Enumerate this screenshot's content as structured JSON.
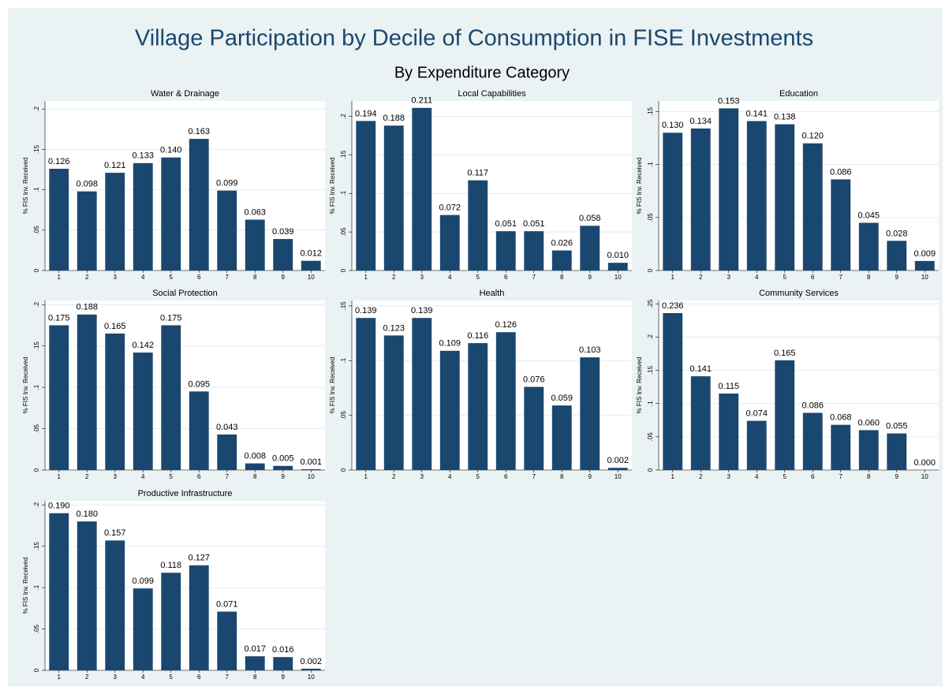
{
  "title": "Village Participation by Decile of Consumption in FISE Investments",
  "subtitle": "By Expenditure Category",
  "chart_data": [
    {
      "type": "bar",
      "title": "Water & Drainage",
      "ylabel": "% FIS Inv. Received",
      "categories": [
        "1",
        "2",
        "3",
        "4",
        "5",
        "6",
        "7",
        "8",
        "9",
        "10"
      ],
      "values": [
        0.126,
        0.098,
        0.121,
        0.133,
        0.14,
        0.163,
        0.099,
        0.063,
        0.039,
        0.012
      ],
      "value_labels": [
        "0.126",
        "0.098",
        "0.121",
        "0.133",
        "0.140",
        "0.163",
        "0.099",
        "0.063",
        "0.039",
        "0.012"
      ],
      "color": "#1a476f",
      "ylim": [
        0,
        0.21
      ],
      "yticks": [
        0,
        {
          "value": 0.05,
          "label": ".05"
        },
        {
          "value": 0.1,
          "label": ".1"
        },
        {
          "value": 0.15,
          "label": ".15"
        },
        {
          "value": 0.2,
          "label": ".2"
        }
      ],
      "grid": true
    },
    {
      "type": "bar",
      "title": "Local Capabilities",
      "ylabel": "% FIS Inv. Received",
      "categories": [
        "1",
        "2",
        "3",
        "4",
        "5",
        "6",
        "7",
        "8",
        "9",
        "10"
      ],
      "values": [
        0.194,
        0.188,
        0.211,
        0.072,
        0.117,
        0.051,
        0.051,
        0.026,
        0.058,
        0.01
      ],
      "value_labels": [
        "0.194",
        "0.188",
        "0.211",
        "0.072",
        "0.117",
        "0.051",
        "0.051",
        "0.026",
        "0.058",
        "0.010"
      ],
      "color": "#1a476f",
      "ylim": [
        0,
        0.22
      ],
      "yticks": [
        0,
        {
          "value": 0.05,
          "label": ".05"
        },
        {
          "value": 0.1,
          "label": ".1"
        },
        {
          "value": 0.15,
          "label": ".15"
        },
        {
          "value": 0.2,
          "label": ".2"
        }
      ],
      "grid": true
    },
    {
      "type": "bar",
      "title": "Education",
      "ylabel": "% FIS Inv. Received",
      "categories": [
        "1",
        "2",
        "3",
        "4",
        "5",
        "6",
        "7",
        "8",
        "9",
        "10"
      ],
      "values": [
        0.13,
        0.134,
        0.153,
        0.141,
        0.138,
        0.12,
        0.086,
        0.045,
        0.028,
        0.009
      ],
      "value_labels": [
        "0.130",
        "0.134",
        "0.153",
        "0.141",
        "0.138",
        "0.120",
        "0.086",
        "0.045",
        "0.028",
        "0.009"
      ],
      "color": "#1a476f",
      "ylim": [
        0,
        0.16
      ],
      "yticks": [
        0,
        {
          "value": 0.05,
          "label": ".05"
        },
        {
          "value": 0.1,
          "label": ".1"
        },
        {
          "value": 0.15,
          "label": ".15"
        }
      ],
      "grid": true
    },
    {
      "type": "bar",
      "title": "Social Protection",
      "ylabel": "% FIS Inv. Received",
      "categories": [
        "1",
        "2",
        "3",
        "4",
        "5",
        "6",
        "7",
        "8",
        "9",
        "10"
      ],
      "values": [
        0.175,
        0.188,
        0.165,
        0.142,
        0.175,
        0.095,
        0.043,
        0.008,
        0.005,
        0.001
      ],
      "value_labels": [
        "0.175",
        "0.188",
        "0.165",
        "0.142",
        "0.175",
        "0.095",
        "0.043",
        "0.008",
        "0.005",
        "0.001"
      ],
      "color": "#1a476f",
      "ylim": [
        0,
        0.205
      ],
      "yticks": [
        0,
        {
          "value": 0.05,
          "label": ".05"
        },
        {
          "value": 0.1,
          "label": ".1"
        },
        {
          "value": 0.15,
          "label": ".15"
        },
        {
          "value": 0.2,
          "label": ".2"
        }
      ],
      "grid": true
    },
    {
      "type": "bar",
      "title": "Health",
      "ylabel": "% FIS Inv. Received",
      "categories": [
        "1",
        "2",
        "3",
        "4",
        "5",
        "6",
        "7",
        "8",
        "9",
        "10"
      ],
      "values": [
        0.139,
        0.123,
        0.139,
        0.109,
        0.116,
        0.126,
        0.076,
        0.059,
        0.103,
        0.002
      ],
      "value_labels": [
        "0.139",
        "0.123",
        "0.139",
        "0.109",
        "0.116",
        "0.126",
        "0.076",
        "0.059",
        "0.103",
        "0.002"
      ],
      "color": "#1a476f",
      "ylim": [
        0,
        0.155
      ],
      "yticks": [
        0,
        {
          "value": 0.05,
          "label": ".05"
        },
        {
          "value": 0.1,
          "label": ".1"
        },
        {
          "value": 0.15,
          "label": ".15"
        }
      ],
      "grid": true
    },
    {
      "type": "bar",
      "title": "Community Services",
      "ylabel": "% FIS Inv. Received",
      "categories": [
        "1",
        "2",
        "3",
        "4",
        "5",
        "6",
        "7",
        "8",
        "9",
        "10"
      ],
      "values": [
        0.236,
        0.141,
        0.115,
        0.074,
        0.165,
        0.086,
        0.068,
        0.06,
        0.055,
        0.0
      ],
      "value_labels": [
        "0.236",
        "0.141",
        "0.115",
        "0.074",
        "0.165",
        "0.086",
        "0.068",
        "0.060",
        "0.055",
        "0.000"
      ],
      "color": "#1a476f",
      "ylim": [
        0,
        0.255
      ],
      "yticks": [
        0,
        {
          "value": 0.05,
          "label": ".05"
        },
        {
          "value": 0.1,
          "label": ".1"
        },
        {
          "value": 0.15,
          "label": ".15"
        },
        {
          "value": 0.2,
          "label": ".2"
        },
        {
          "value": 0.25,
          "label": ".25"
        }
      ],
      "grid": true
    },
    {
      "type": "bar",
      "title": "Productive Infrastructure",
      "ylabel": "% FIS Inv. Received",
      "categories": [
        "1",
        "2",
        "3",
        "4",
        "5",
        "6",
        "7",
        "8",
        "9",
        "10"
      ],
      "values": [
        0.19,
        0.18,
        0.157,
        0.099,
        0.118,
        0.127,
        0.071,
        0.017,
        0.016,
        0.002
      ],
      "value_labels": [
        "0.190",
        "0.180",
        "0.157",
        "0.099",
        "0.118",
        "0.127",
        "0.071",
        "0.017",
        "0.016",
        "0.002"
      ],
      "color": "#1a476f",
      "ylim": [
        0,
        0.205
      ],
      "yticks": [
        0,
        {
          "value": 0.05,
          "label": ".05"
        },
        {
          "value": 0.1,
          "label": ".1"
        },
        {
          "value": 0.15,
          "label": ".15"
        },
        {
          "value": 0.2,
          "label": ".2"
        }
      ],
      "grid": true
    }
  ]
}
